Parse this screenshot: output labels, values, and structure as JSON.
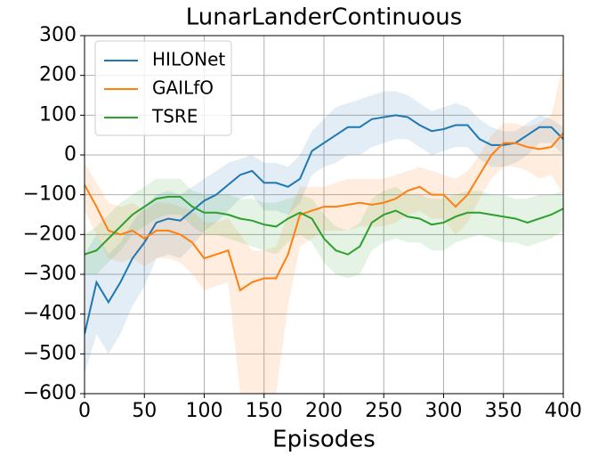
{
  "chart_data": {
    "type": "line",
    "title": "LunarLanderContinuous",
    "x_label": "Episodes",
    "x": [
      0,
      10,
      20,
      30,
      40,
      50,
      60,
      70,
      80,
      90,
      100,
      110,
      120,
      130,
      140,
      150,
      160,
      170,
      180,
      190,
      200,
      210,
      220,
      230,
      240,
      250,
      260,
      270,
      280,
      290,
      300,
      310,
      320,
      330,
      340,
      350,
      360,
      370,
      380,
      390,
      400
    ],
    "series": [
      {
        "name": "HILONet",
        "color": "#1f77b4",
        "values": [
          -450,
          -320,
          -370,
          -320,
          -260,
          -220,
          -170,
          -160,
          -165,
          -140,
          -115,
          -100,
          -75,
          -50,
          -40,
          -70,
          -70,
          -80,
          -60,
          10,
          30,
          50,
          70,
          70,
          90,
          95,
          100,
          95,
          75,
          60,
          65,
          75,
          75,
          40,
          25,
          25,
          30,
          50,
          70,
          70,
          40
        ],
        "upper": [
          -250,
          -200,
          -250,
          -220,
          -170,
          -130,
          -100,
          -90,
          -100,
          -80,
          -60,
          -40,
          -20,
          -10,
          0,
          -20,
          -20,
          -30,
          0,
          60,
          90,
          120,
          130,
          140,
          150,
          160,
          160,
          150,
          130,
          110,
          120,
          130,
          120,
          90,
          70,
          60,
          60,
          80,
          100,
          90,
          70
        ],
        "lower": [
          -550,
          -450,
          -500,
          -450,
          -380,
          -330,
          -260,
          -250,
          -260,
          -230,
          -190,
          -170,
          -140,
          -110,
          -100,
          -140,
          -140,
          -150,
          -120,
          -50,
          -30,
          -20,
          0,
          0,
          20,
          30,
          40,
          40,
          20,
          0,
          10,
          20,
          20,
          -10,
          -30,
          -30,
          -20,
          0,
          30,
          30,
          0
        ]
      },
      {
        "name": "GAILfO",
        "color": "#ff7f0e",
        "values": [
          -75,
          -130,
          -190,
          -200,
          -190,
          -210,
          -190,
          -190,
          -200,
          -220,
          -260,
          -250,
          -240,
          -340,
          -320,
          -310,
          -310,
          -250,
          -150,
          -140,
          -130,
          -130,
          -125,
          -120,
          -125,
          -120,
          -110,
          -90,
          -80,
          -100,
          -100,
          -130,
          -100,
          -50,
          0,
          30,
          30,
          20,
          15,
          20,
          55
        ],
        "upper": [
          -20,
          -70,
          -120,
          -130,
          -120,
          -140,
          -120,
          -120,
          -130,
          -140,
          -170,
          -170,
          -160,
          -200,
          -240,
          -240,
          -230,
          -150,
          -80,
          -80,
          -80,
          -70,
          -60,
          -60,
          -60,
          -60,
          -50,
          -40,
          -30,
          -40,
          -50,
          -60,
          -40,
          0,
          50,
          80,
          80,
          70,
          80,
          100,
          230
        ],
        "lower": [
          -140,
          -200,
          -260,
          -270,
          -260,
          -280,
          -260,
          -260,
          -270,
          -300,
          -340,
          -330,
          -320,
          -600,
          -600,
          -600,
          -600,
          -380,
          -230,
          -210,
          -190,
          -190,
          -190,
          -180,
          -180,
          -180,
          -170,
          -150,
          -140,
          -160,
          -160,
          -200,
          -170,
          -110,
          -60,
          -30,
          -30,
          -40,
          -60,
          -50,
          -100
        ]
      },
      {
        "name": "TSRE",
        "color": "#2ca02c",
        "values": [
          -250,
          -240,
          -210,
          -180,
          -150,
          -130,
          -110,
          -105,
          -105,
          -130,
          -145,
          -145,
          -150,
          -160,
          -165,
          -175,
          -180,
          -160,
          -145,
          -160,
          -210,
          -240,
          -250,
          -230,
          -170,
          -150,
          -140,
          -155,
          -160,
          -175,
          -170,
          -155,
          -145,
          -145,
          -150,
          -155,
          -160,
          -170,
          -160,
          -150,
          -135
        ],
        "upper": [
          -200,
          -180,
          -150,
          -120,
          -100,
          -80,
          -60,
          -60,
          -60,
          -90,
          -100,
          -100,
          -100,
          -110,
          -110,
          -120,
          -120,
          -110,
          -100,
          -110,
          -150,
          -180,
          -190,
          -170,
          -110,
          -90,
          -80,
          -100,
          -100,
          -110,
          -110,
          -100,
          -90,
          -90,
          -100,
          -100,
          -110,
          -110,
          -100,
          -100,
          -90
        ],
        "lower": [
          -300,
          -300,
          -270,
          -240,
          -200,
          -180,
          -160,
          -150,
          -150,
          -180,
          -200,
          -200,
          -210,
          -220,
          -230,
          -240,
          -250,
          -220,
          -200,
          -220,
          -270,
          -300,
          -310,
          -300,
          -240,
          -220,
          -210,
          -220,
          -220,
          -240,
          -240,
          -220,
          -210,
          -200,
          -210,
          -220,
          -220,
          -230,
          -220,
          -210,
          -190
        ]
      }
    ],
    "xlim": [
      0,
      400
    ],
    "xticks": [
      0,
      50,
      100,
      150,
      200,
      250,
      300,
      350,
      400
    ],
    "ylim": [
      -600,
      300
    ],
    "yticks": [
      {
        "value": -600,
        "label": "−600"
      },
      {
        "value": -500,
        "label": "−500"
      },
      {
        "value": -400,
        "label": "−400"
      },
      {
        "value": -300,
        "label": "−300"
      },
      {
        "value": -200,
        "label": "−200"
      },
      {
        "value": -100,
        "label": "−100"
      },
      0,
      100,
      200,
      300
    ],
    "grid": true,
    "legend": "upper left"
  }
}
